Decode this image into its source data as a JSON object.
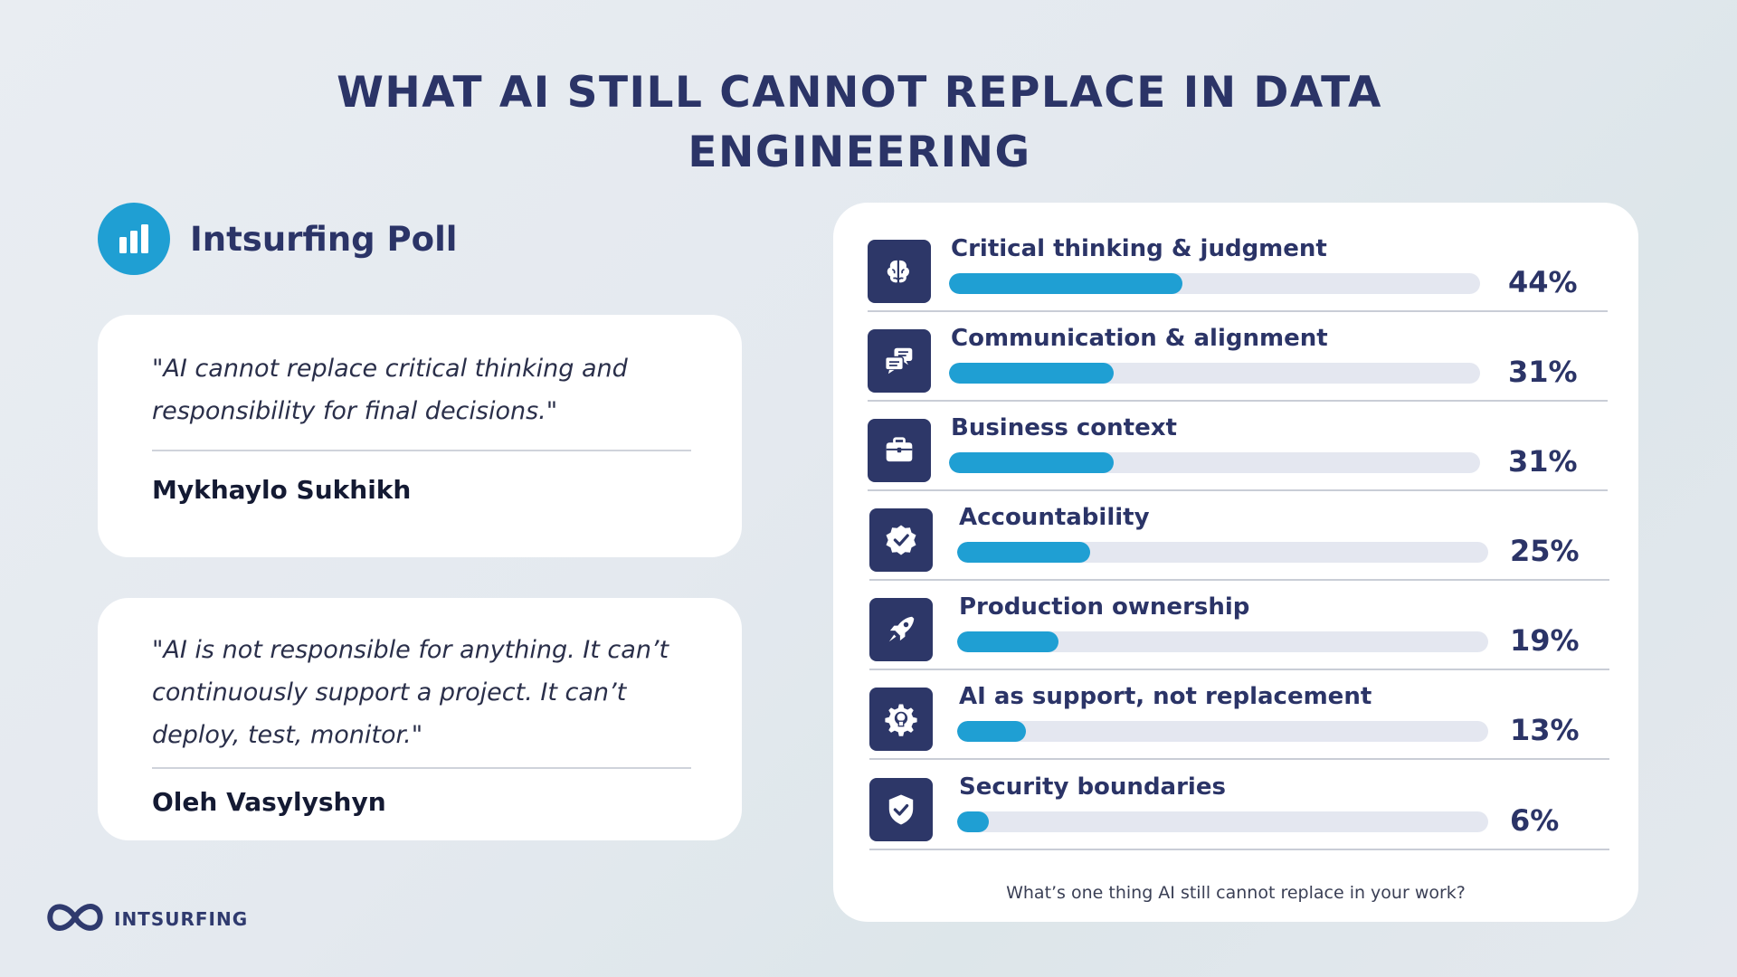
{
  "title": "WHAT AI STILL CANNOT REPLACE IN DATA ENGINEERING",
  "poll": {
    "title": "Intsurfing Poll",
    "icon": "bar-chart-icon"
  },
  "quotes": [
    {
      "text": "\"AI cannot replace critical thinking and responsibility for final decisions.\"",
      "author": "Mykhaylo Sukhikh"
    },
    {
      "text": "\"AI is not responsible for anything. It can’t continuously support a project. It can’t deploy, test, monitor.\"",
      "author": "Oleh Vasylyshyn"
    }
  ],
  "chart_data": {
    "type": "bar",
    "orientation": "horizontal",
    "categories": [
      "Critical thinking & judgment",
      "Communication & alignment",
      "Business context",
      "Accountability",
      "Production ownership",
      "AI as support, not replacement",
      "Security boundaries"
    ],
    "values": [
      44,
      31,
      31,
      25,
      19,
      13,
      6
    ],
    "value_labels": [
      "44%",
      "31%",
      "31%",
      "25%",
      "19%",
      "13%",
      "6%"
    ],
    "icons": [
      "brain-icon",
      "chat-bubbles-icon",
      "briefcase-icon",
      "verified-badge-icon",
      "rocket-icon",
      "gear-bulb-icon",
      "shield-check-icon"
    ],
    "xlim": [
      0,
      100
    ],
    "caption": "What’s one thing AI still cannot replace in your work?",
    "colors": {
      "bar": "#1f9fd3",
      "track": "#e4e7f0",
      "icon_bg": "#2d3768"
    }
  },
  "brand": {
    "name": "INTSURFING",
    "icon": "infinity-logo-icon"
  },
  "colors": {
    "heading": "#2b3467",
    "accent": "#1f9fd3"
  }
}
